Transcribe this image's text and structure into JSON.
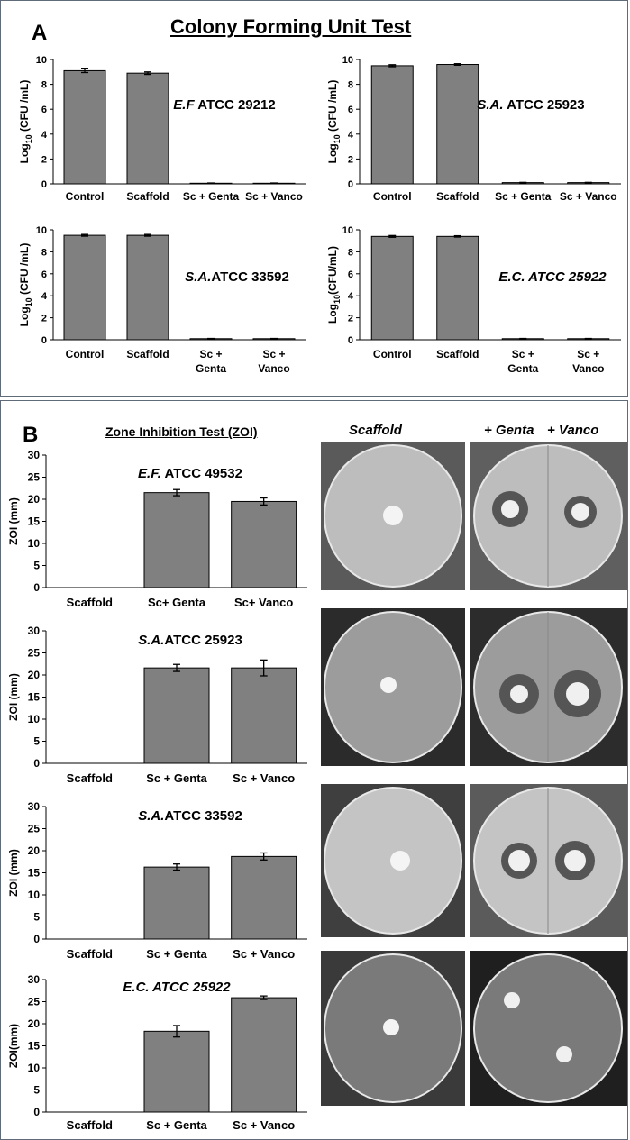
{
  "panel_a": {
    "letter": "A",
    "title": "Colony Forming Unit Test"
  },
  "panel_b": {
    "letter": "B",
    "title": "Zone Inhibition  Test (ZOI)",
    "photo_headers": [
      "Scaffold",
      "+ Genta",
      "+ Vanco"
    ]
  },
  "chart_data": [
    {
      "id": "cfu-ef",
      "type": "bar",
      "title": "E.F ATCC 29212",
      "title_italic_part": "E.F",
      "title_rest": " ATCC 29212",
      "ylabel": "Log10 (CFU /mL)",
      "categories": [
        "Control",
        "Scaffold",
        "Sc + Genta",
        "Sc + Vanco"
      ],
      "values": [
        9.1,
        8.9,
        0.05,
        0.05
      ],
      "errors": [
        0.15,
        0.1,
        0.02,
        0.02
      ],
      "ylim": [
        0,
        10
      ],
      "yticks": [
        0,
        2,
        4,
        6,
        8,
        10
      ],
      "color": "#808080"
    },
    {
      "id": "cfu-sa-25923",
      "type": "bar",
      "title": "S.A. ATCC 25923",
      "title_italic_part": "S.A.",
      "title_rest": " ATCC 25923",
      "ylabel": "Log10 (CFU /mL)",
      "categories": [
        "Control",
        "Scaffold",
        "Sc + Genta",
        "Sc + Vanco"
      ],
      "values": [
        9.5,
        9.6,
        0.1,
        0.1
      ],
      "errors": [
        0.08,
        0.06,
        0.02,
        0.02
      ],
      "ylim": [
        0,
        10
      ],
      "yticks": [
        0,
        2,
        4,
        6,
        8,
        10
      ],
      "color": "#808080"
    },
    {
      "id": "cfu-sa-33592",
      "type": "bar",
      "title": "S.A.ATCC 33592",
      "title_italic_part": "S.A.",
      "title_rest": "ATCC 33592",
      "ylabel": "Log10 (CFU /mL)",
      "categories": [
        "Control",
        "Scaffold",
        "Sc + Genta",
        "Sc + Vanco"
      ],
      "values": [
        9.5,
        9.5,
        0.1,
        0.1
      ],
      "errors": [
        0.08,
        0.08,
        0.02,
        0.02
      ],
      "ylim": [
        0,
        10
      ],
      "yticks": [
        0,
        2,
        4,
        6,
        8,
        10
      ],
      "color": "#808080"
    },
    {
      "id": "cfu-ec",
      "type": "bar",
      "title": "E.C. ATCC 25922",
      "title_italic_part": "E.C. ATCC 25922",
      "title_rest": "",
      "ylabel": "Log10(CFU/mL)",
      "categories": [
        "Control",
        "Scaffold",
        "Sc + Genta",
        "Sc + Vanco"
      ],
      "values": [
        9.4,
        9.4,
        0.1,
        0.1
      ],
      "errors": [
        0.08,
        0.06,
        0.02,
        0.02
      ],
      "ylim": [
        0,
        10
      ],
      "yticks": [
        0,
        2,
        4,
        6,
        8,
        10
      ],
      "color": "#808080"
    },
    {
      "id": "zoi-ef",
      "type": "bar",
      "title": "E.F. ATCC 49532",
      "title_italic_part": "E.F.",
      "title_rest": " ATCC 49532",
      "ylabel": "ZOI (mm)",
      "categories": [
        "Scaffold",
        "Sc+ Genta",
        "Sc+ Vanco"
      ],
      "values": [
        0,
        21.5,
        19.5
      ],
      "errors": [
        0,
        0.7,
        0.8
      ],
      "ylim": [
        0,
        30
      ],
      "yticks": [
        0,
        5,
        10,
        15,
        20,
        25,
        30
      ],
      "color": "#808080"
    },
    {
      "id": "zoi-sa-25923",
      "type": "bar",
      "title": "S.A.ATCC 25923",
      "title_italic_part": "S.A.",
      "title_rest": "ATCC 25923",
      "ylabel": "ZOI (mm)",
      "categories": [
        "Scaffold",
        "Sc + Genta",
        "Sc + Vanco"
      ],
      "values": [
        0,
        21.6,
        21.6
      ],
      "errors": [
        0,
        0.8,
        1.8
      ],
      "ylim": [
        0,
        30
      ],
      "yticks": [
        0,
        5,
        10,
        15,
        20,
        25,
        30
      ],
      "color": "#808080"
    },
    {
      "id": "zoi-sa-33592",
      "type": "bar",
      "title": "S.A.ATCC 33592",
      "title_italic_part": "S.A.",
      "title_rest": "ATCC 33592",
      "ylabel": "ZOI (mm)",
      "categories": [
        "Scaffold",
        "Sc + Genta",
        "Sc + Vanco"
      ],
      "values": [
        0,
        16.3,
        18.7
      ],
      "errors": [
        0,
        0.7,
        0.8
      ],
      "ylim": [
        0,
        30
      ],
      "yticks": [
        0,
        5,
        10,
        15,
        20,
        25,
        30
      ],
      "color": "#808080"
    },
    {
      "id": "zoi-ec",
      "type": "bar",
      "title": "E.C. ATCC 25922",
      "title_italic_part": "E.C. ATCC 25922",
      "title_rest": "",
      "ylabel": "ZOI(mm)",
      "categories": [
        "Scaffold",
        "Sc + Genta",
        "Sc + Vanco"
      ],
      "values": [
        0,
        18.3,
        25.9
      ],
      "errors": [
        0,
        1.3,
        0.4
      ],
      "ylim": [
        0,
        30
      ],
      "yticks": [
        0,
        5,
        10,
        15,
        20,
        25,
        30
      ],
      "color": "#808080"
    }
  ]
}
